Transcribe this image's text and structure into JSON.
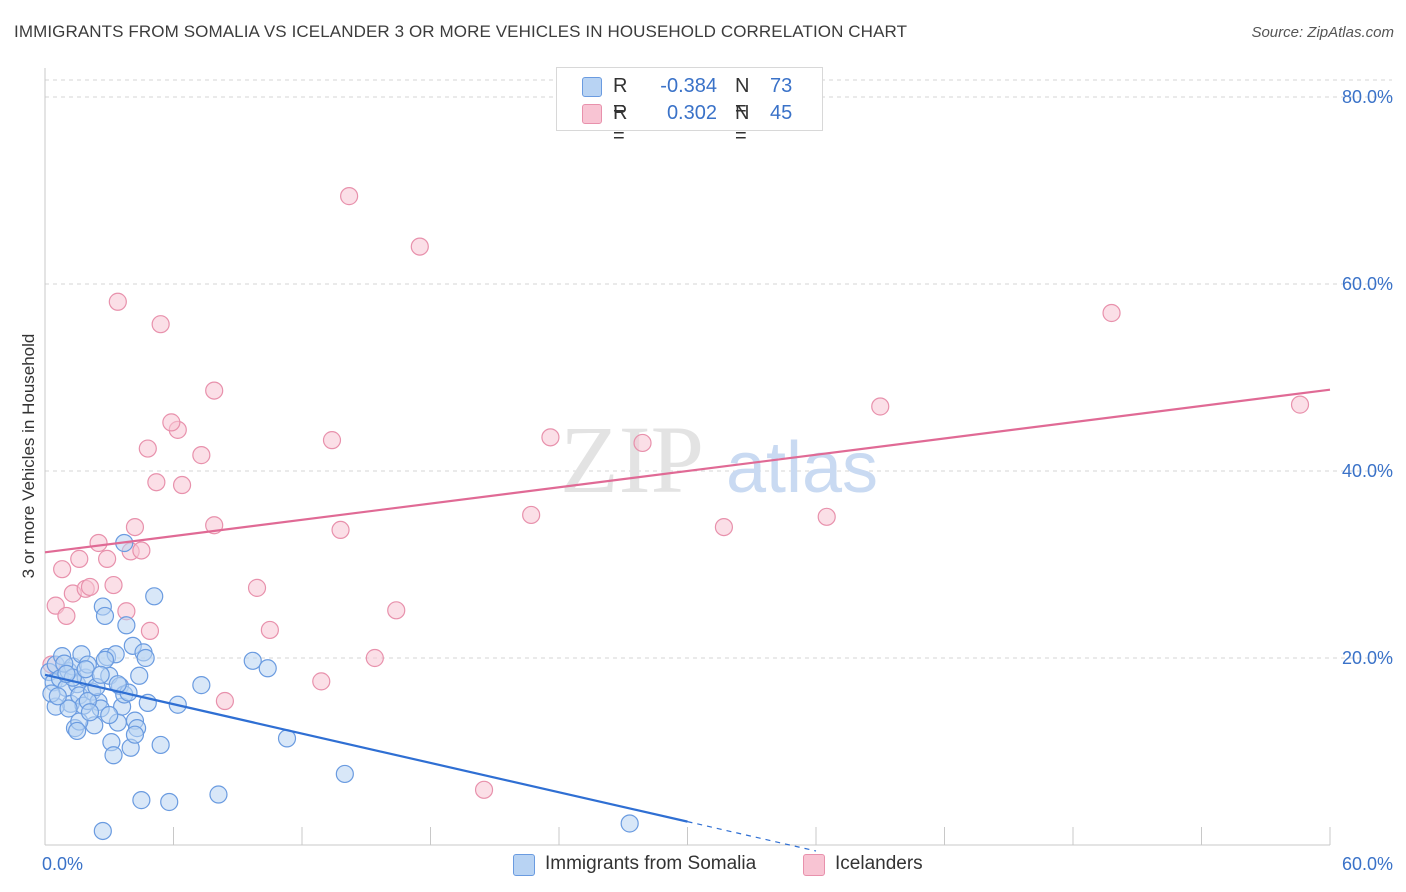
{
  "title": "IMMIGRANTS FROM SOMALIA VS ICELANDER 3 OR MORE VEHICLES IN HOUSEHOLD CORRELATION CHART",
  "source": "Source: ZipAtlas.com",
  "watermark": {
    "zip": "ZIP",
    "atlas": "atlas"
  },
  "legend": {
    "series": [
      {
        "name": "Immigrants from Somalia",
        "r_label": "R =",
        "r_value": "-0.384",
        "n_label": "N =",
        "n_value": "73"
      },
      {
        "name": "Icelanders",
        "r_label": "R =",
        "r_value": "0.302",
        "n_label": "N =",
        "n_value": "45"
      }
    ]
  },
  "colors": {
    "blue_fill": "#b8d3f3",
    "blue_stroke": "#6a9be0",
    "blue_line": "#2f6fd3",
    "pink_fill": "#f8c4d3",
    "pink_stroke": "#e891ac",
    "pink_line": "#e06a95",
    "axis_text": "#3a72c8",
    "grid": "#d6d6d6"
  },
  "chart_data": {
    "type": "scatter",
    "title": "IMMIGRANTS FROM SOMALIA VS ICELANDER 3 OR MORE VEHICLES IN HOUSEHOLD CORRELATION CHART",
    "xlabel": "",
    "ylabel": "3 or more Vehicles in Household",
    "xlim": [
      0,
      60
    ],
    "ylim": [
      0,
      80
    ],
    "x_tick_labels": [
      "0.0%",
      "60.0%"
    ],
    "y_ticks": [
      20,
      40,
      60,
      80
    ],
    "y_tick_labels": [
      "20.0%",
      "40.0%",
      "60.0%",
      "80.0%"
    ],
    "series": [
      {
        "name": "Immigrants from Somalia",
        "trend": {
          "x1": 0,
          "y1": 18.2,
          "x2": 30,
          "y2": 2.5,
          "dash_to_x": 36
        },
        "points": [
          [
            0.2,
            18.5
          ],
          [
            0.4,
            17.4
          ],
          [
            0.5,
            19.3
          ],
          [
            0.7,
            17.8
          ],
          [
            0.8,
            20.2
          ],
          [
            1.0,
            16.8
          ],
          [
            1.1,
            18.6
          ],
          [
            1.2,
            15.1
          ],
          [
            1.3,
            19.1
          ],
          [
            1.4,
            12.5
          ],
          [
            1.5,
            17.2
          ],
          [
            1.6,
            16.0
          ],
          [
            1.7,
            20.4
          ],
          [
            1.8,
            14.9
          ],
          [
            1.9,
            17.9
          ],
          [
            2.0,
            19.3
          ],
          [
            2.2,
            16.4
          ],
          [
            2.3,
            12.8
          ],
          [
            2.5,
            15.3
          ],
          [
            2.6,
            14.6
          ],
          [
            2.7,
            25.5
          ],
          [
            2.8,
            24.5
          ],
          [
            2.9,
            20.1
          ],
          [
            3.0,
            18.1
          ],
          [
            3.1,
            11.0
          ],
          [
            3.2,
            9.6
          ],
          [
            3.3,
            20.4
          ],
          [
            3.4,
            13.1
          ],
          [
            3.5,
            17.0
          ],
          [
            3.6,
            14.8
          ],
          [
            3.7,
            16.1
          ],
          [
            3.8,
            23.5
          ],
          [
            3.9,
            16.3
          ],
          [
            4.0,
            10.4
          ],
          [
            4.1,
            21.3
          ],
          [
            4.2,
            13.3
          ],
          [
            4.3,
            12.5
          ],
          [
            4.4,
            18.1
          ],
          [
            4.5,
            4.8
          ],
          [
            4.6,
            20.6
          ],
          [
            4.7,
            20.0
          ],
          [
            4.8,
            15.2
          ],
          [
            5.4,
            10.7
          ],
          [
            5.8,
            4.6
          ],
          [
            6.2,
            15.0
          ],
          [
            7.3,
            17.1
          ],
          [
            8.1,
            5.4
          ],
          [
            9.7,
            19.7
          ],
          [
            10.4,
            18.9
          ],
          [
            11.3,
            11.4
          ],
          [
            14.0,
            7.6
          ],
          [
            27.3,
            2.3
          ],
          [
            3.7,
            32.3
          ],
          [
            5.1,
            26.6
          ],
          [
            0.5,
            14.8
          ],
          [
            0.9,
            19.4
          ],
          [
            1.1,
            14.6
          ],
          [
            1.3,
            17.9
          ],
          [
            1.6,
            13.2
          ],
          [
            2.0,
            15.4
          ],
          [
            2.4,
            16.9
          ],
          [
            2.8,
            19.8
          ],
          [
            3.0,
            13.9
          ],
          [
            0.3,
            16.2
          ],
          [
            0.6,
            15.9
          ],
          [
            1.0,
            18.3
          ],
          [
            1.9,
            18.8
          ],
          [
            2.1,
            14.2
          ],
          [
            2.6,
            18.2
          ],
          [
            1.5,
            12.2
          ],
          [
            4.2,
            11.8
          ],
          [
            3.4,
            17.2
          ],
          [
            2.7,
            1.5
          ]
        ]
      },
      {
        "name": "Icelanders",
        "trend": {
          "x1": 0,
          "y1": 31.3,
          "x2": 60,
          "y2": 48.7
        },
        "points": [
          [
            0.3,
            19.3
          ],
          [
            0.5,
            25.6
          ],
          [
            0.8,
            29.5
          ],
          [
            1.0,
            24.5
          ],
          [
            1.3,
            26.9
          ],
          [
            1.6,
            30.6
          ],
          [
            1.9,
            27.4
          ],
          [
            2.1,
            27.6
          ],
          [
            2.5,
            32.3
          ],
          [
            2.9,
            30.6
          ],
          [
            3.2,
            27.8
          ],
          [
            3.8,
            25.0
          ],
          [
            4.0,
            31.4
          ],
          [
            4.2,
            34.0
          ],
          [
            4.5,
            31.5
          ],
          [
            4.8,
            42.4
          ],
          [
            4.9,
            22.9
          ],
          [
            5.2,
            38.8
          ],
          [
            6.4,
            38.5
          ],
          [
            6.2,
            44.4
          ],
          [
            7.3,
            41.7
          ],
          [
            7.9,
            34.2
          ],
          [
            8.4,
            15.4
          ],
          [
            9.9,
            27.5
          ],
          [
            10.5,
            23.0
          ],
          [
            12.9,
            17.5
          ],
          [
            13.4,
            43.3
          ],
          [
            13.8,
            33.7
          ],
          [
            16.4,
            25.1
          ],
          [
            14.2,
            69.4
          ],
          [
            17.5,
            64.0
          ],
          [
            20.5,
            5.9
          ],
          [
            22.7,
            35.3
          ],
          [
            23.6,
            43.6
          ],
          [
            27.9,
            43.0
          ],
          [
            31.7,
            34.0
          ],
          [
            36.5,
            35.1
          ],
          [
            39.0,
            46.9
          ],
          [
            49.8,
            56.9
          ],
          [
            58.6,
            47.1
          ],
          [
            3.4,
            58.1
          ],
          [
            5.4,
            55.7
          ],
          [
            5.9,
            45.2
          ],
          [
            7.9,
            48.6
          ],
          [
            15.4,
            20.0
          ]
        ]
      }
    ]
  }
}
